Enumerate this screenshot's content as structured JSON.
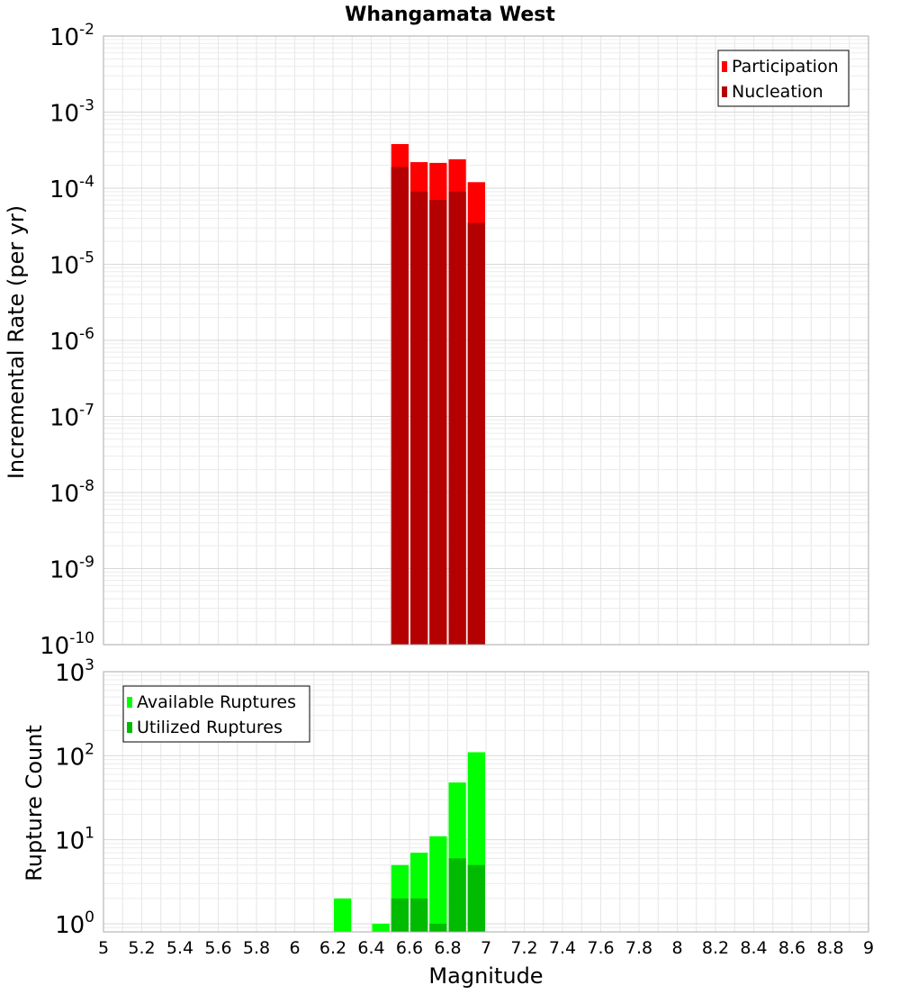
{
  "chart_data": [
    {
      "type": "bar",
      "title": "Whangamata West",
      "xlabel": "",
      "ylabel": "Incremental Rate (per yr)",
      "yscale": "log",
      "xlim": [
        5,
        9
      ],
      "ylim": [
        1e-10,
        0.01
      ],
      "y_tick_exponents": [
        -10,
        -9,
        -8,
        -7,
        -6,
        -5,
        -4,
        -3,
        -2
      ],
      "grid": true,
      "legend_position": "top-right",
      "bar_width": 0.1,
      "x": [
        6.55,
        6.65,
        6.75,
        6.85,
        6.95
      ],
      "series": [
        {
          "name": "Participation",
          "color": "#ff0000",
          "values": [
            0.00038,
            0.00022,
            0.000215,
            0.00024,
            0.00012
          ]
        },
        {
          "name": "Nucleation",
          "color": "#b40000",
          "values": [
            0.00019,
            9e-05,
            7e-05,
            9e-05,
            3.5e-05
          ]
        }
      ]
    },
    {
      "type": "bar",
      "title": "",
      "xlabel": "Magnitude",
      "ylabel": "Rupture Count",
      "yscale": "log",
      "xlim": [
        5,
        9
      ],
      "ylim": [
        0.8,
        1000
      ],
      "y_tick_exponents": [
        0,
        1,
        2,
        3
      ],
      "x_ticks": [
        "5",
        "5.2",
        "5.4",
        "5.6",
        "5.8",
        "6",
        "6.2",
        "6.4",
        "6.6",
        "6.8",
        "7",
        "7.2",
        "7.4",
        "7.6",
        "7.8",
        "8",
        "8.2",
        "8.4",
        "8.6",
        "8.8",
        "9"
      ],
      "grid": true,
      "legend_position": "top-left",
      "bar_width": 0.1,
      "x": [
        6.25,
        6.45,
        6.55,
        6.65,
        6.75,
        6.85,
        6.95
      ],
      "series": [
        {
          "name": "Available Ruptures",
          "color": "#00ff00",
          "values": [
            2,
            1,
            5,
            7,
            11,
            48,
            110
          ]
        },
        {
          "name": "Utilized Ruptures",
          "color": "#00bb00",
          "values": [
            0,
            0,
            2,
            2,
            1,
            6,
            5
          ]
        }
      ]
    }
  ]
}
